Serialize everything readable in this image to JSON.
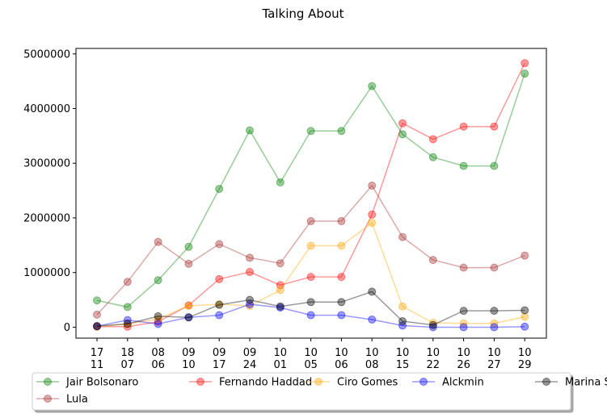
{
  "chart_data": {
    "type": "line",
    "title": "Talking About",
    "xlabel": "",
    "ylabel": "",
    "categories": [
      [
        "17",
        "11"
      ],
      [
        "18",
        "07"
      ],
      [
        "08",
        "06"
      ],
      [
        "09",
        "10"
      ],
      [
        "09",
        "17"
      ],
      [
        "09",
        "24"
      ],
      [
        "10",
        "01"
      ],
      [
        "10",
        "05"
      ],
      [
        "10",
        "06"
      ],
      [
        "10",
        "08"
      ],
      [
        "10",
        "15"
      ],
      [
        "10",
        "22"
      ],
      [
        "10",
        "26"
      ],
      [
        "10",
        "27"
      ],
      [
        "10",
        "29"
      ]
    ],
    "ylim": [
      -200000,
      5100000
    ],
    "yticks": [
      0,
      1000000,
      2000000,
      3000000,
      4000000,
      5000000
    ],
    "ytick_labels": [
      "0",
      "1000000",
      "2000000",
      "3000000",
      "4000000",
      "5000000"
    ],
    "grid": false,
    "legend_position": "bottom",
    "series": [
      {
        "name": "Jair Bolsonaro",
        "color": "#008000",
        "values": [
          490000,
          370000,
          860000,
          1470000,
          2530000,
          3600000,
          2650000,
          3590000,
          3590000,
          4410000,
          3530000,
          3110000,
          2950000,
          2950000,
          4640000
        ]
      },
      {
        "name": "Fernando Haddad",
        "color": "#ff0000",
        "values": [
          10000,
          10000,
          100000,
          400000,
          880000,
          1010000,
          770000,
          920000,
          920000,
          2060000,
          3730000,
          3440000,
          3670000,
          3670000,
          4830000
        ]
      },
      {
        "name": "Ciro Gomes",
        "color": "#ffa500",
        "values": [
          10000,
          60000,
          150000,
          390000,
          420000,
          390000,
          680000,
          1490000,
          1490000,
          1910000,
          380000,
          80000,
          70000,
          70000,
          190000
        ]
      },
      {
        "name": "Alckmin",
        "color": "#0000ff",
        "values": [
          20000,
          130000,
          60000,
          180000,
          220000,
          420000,
          360000,
          220000,
          220000,
          140000,
          30000,
          0,
          0,
          0,
          10000
        ]
      },
      {
        "name": "Marina Silva",
        "color": "#000000",
        "values": [
          20000,
          60000,
          200000,
          180000,
          410000,
          500000,
          380000,
          460000,
          460000,
          650000,
          110000,
          40000,
          300000,
          300000,
          310000
        ]
      },
      {
        "name": "Lula",
        "color": "#a52a2a",
        "values": [
          230000,
          830000,
          1560000,
          1160000,
          1520000,
          1270000,
          1170000,
          1940000,
          1940000,
          2590000,
          1650000,
          1230000,
          1090000,
          1090000,
          1310000
        ]
      }
    ]
  }
}
